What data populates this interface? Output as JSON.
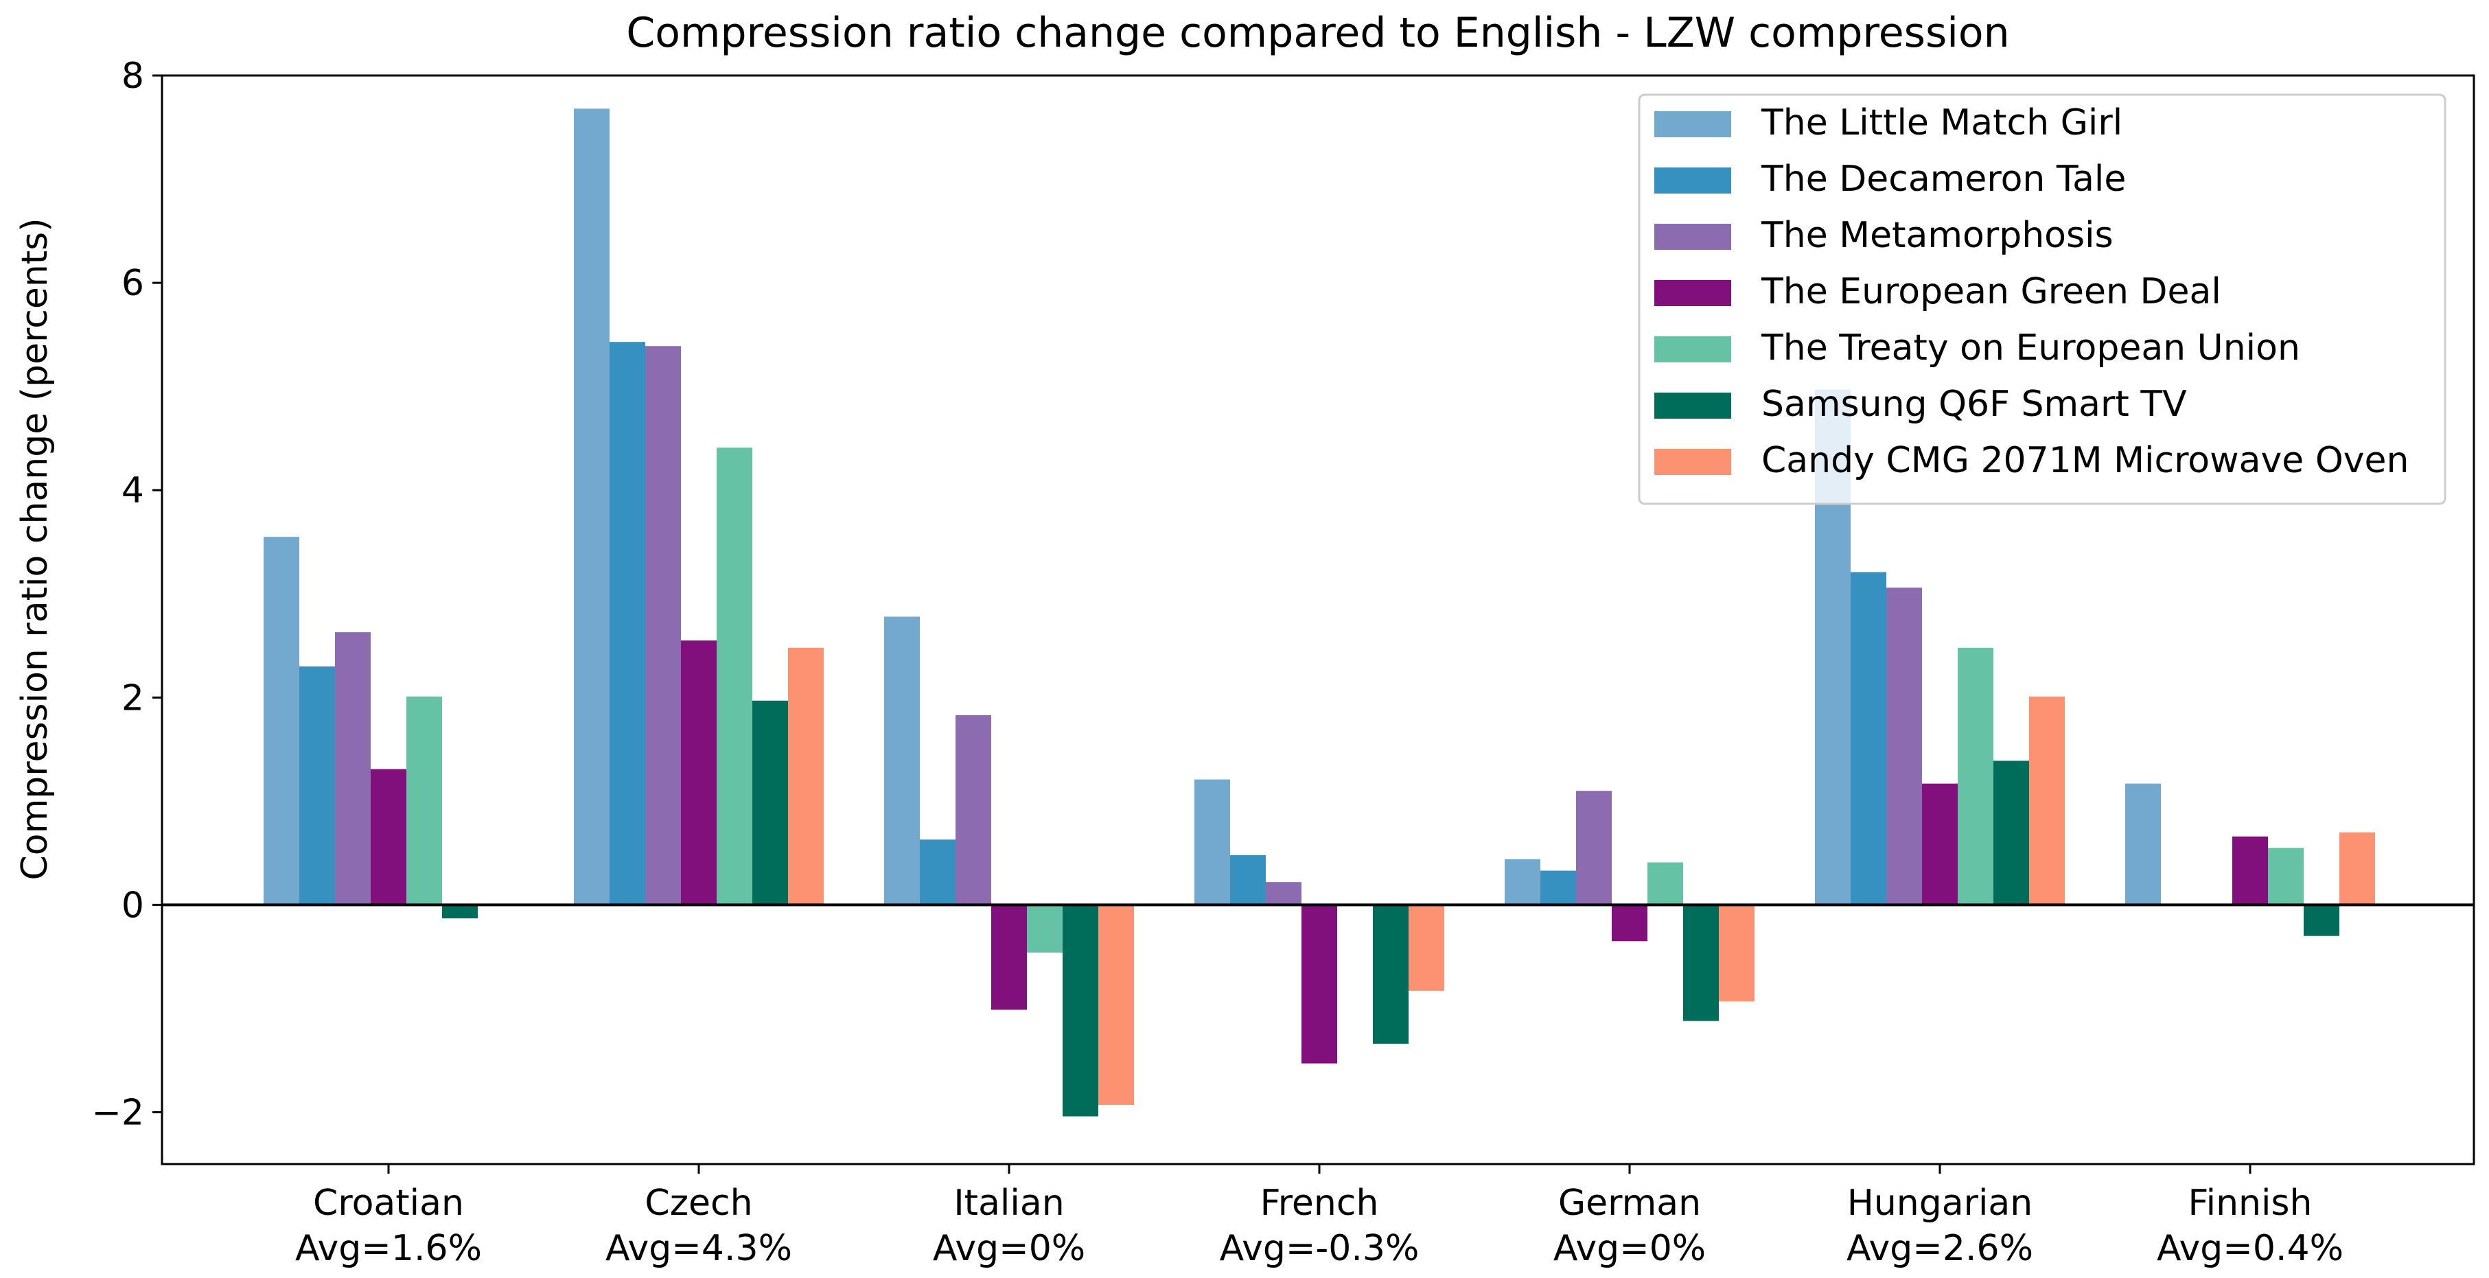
{
  "chart_data": {
    "type": "bar",
    "title": "Compression ratio change compared to English - LZW compression",
    "xlabel": "",
    "ylabel": "Compression ratio change (percents)",
    "ylim": [
      -2.5,
      8
    ],
    "yticks": [
      -2,
      0,
      2,
      4,
      6,
      8
    ],
    "ytick_labels": [
      "−2",
      "0",
      "2",
      "4",
      "6",
      "8"
    ],
    "categories": [
      "Croatian",
      "Czech",
      "Italian",
      "French",
      "German",
      "Hungarian",
      "Finnish"
    ],
    "category_sublabels": [
      "Avg=1.6%",
      "Avg=4.3%",
      "Avg=0%",
      "Avg=-0.3%",
      "Avg=0%",
      "Avg=2.6%",
      "Avg=0.4%"
    ],
    "legend_position": "top-right",
    "series": [
      {
        "name": "The Little Match Girl",
        "color": "#74a9cf",
        "values": [
          3.55,
          7.68,
          2.78,
          1.21,
          0.44,
          4.97,
          1.17
        ]
      },
      {
        "name": "The Decameron Tale",
        "color": "#3690c0",
        "values": [
          2.3,
          5.43,
          0.63,
          0.48,
          0.33,
          3.21,
          0
        ]
      },
      {
        "name": "The Metamorphosis",
        "color": "#8c6bb1",
        "values": [
          2.63,
          5.39,
          1.83,
          0.22,
          1.1,
          3.06,
          0
        ]
      },
      {
        "name": "The European Green Deal",
        "color": "#810f7c",
        "values": [
          1.31,
          2.55,
          -1.01,
          -1.53,
          -0.35,
          1.17,
          0.66
        ]
      },
      {
        "name": "The Treaty on European Union",
        "color": "#66c2a4",
        "values": [
          2.01,
          4.41,
          -0.46,
          0,
          0.41,
          2.48,
          0.55
        ]
      },
      {
        "name": "Samsung Q6F Smart TV",
        "color": "#006d5b",
        "values": [
          -0.13,
          1.97,
          -2.04,
          -1.34,
          -1.12,
          1.39,
          -0.3
        ]
      },
      {
        "name": "Candy CMG 2071M Microwave Oven",
        "color": "#fc9272",
        "values": [
          0,
          2.48,
          -1.93,
          -0.83,
          -0.93,
          2.01,
          0.7
        ]
      }
    ]
  }
}
